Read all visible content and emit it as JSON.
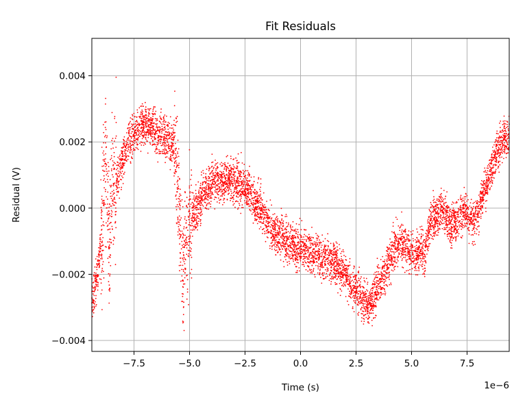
{
  "chart_data": {
    "type": "scatter",
    "title": "Fit Residuals",
    "xlabel": "Time (s)",
    "ylabel": "Residual (V)",
    "x_offset_label": "1e−6",
    "xlim": [
      -9.4,
      9.4
    ],
    "ylim": [
      -0.00433,
      0.00513
    ],
    "grid": true,
    "color": "#ff0000",
    "x_ticks": [
      -7.5,
      -5.0,
      -2.5,
      0.0,
      2.5,
      5.0,
      7.5
    ],
    "x_tick_labels": [
      "−7.5",
      "−5.0",
      "−2.5",
      "0.0",
      "2.5",
      "5.0",
      "7.5"
    ],
    "y_ticks": [
      -0.004,
      -0.002,
      0.0,
      0.002,
      0.004
    ],
    "y_tick_labels": [
      "−0.004",
      "−0.002",
      "0.000",
      "0.002",
      "0.004"
    ],
    "series": [
      {
        "x": [
          -9.4,
          -9.2,
          -9.0,
          -8.9,
          -8.8,
          -8.7,
          -8.6,
          -8.5,
          -8.3,
          -8.1,
          -7.9,
          -7.7,
          -7.5,
          -7.3,
          -7.1,
          -6.9,
          -6.7,
          -6.5,
          -6.3,
          -6.1,
          -5.9,
          -5.7,
          -5.5,
          -5.4,
          -5.3,
          -5.2,
          -5.1,
          -5.0,
          -4.8,
          -4.6,
          -4.4,
          -4.2,
          -4.0,
          -3.8,
          -3.6,
          -3.4,
          -3.2,
          -3.0,
          -2.8,
          -2.6,
          -2.4,
          -2.2,
          -2.0,
          -1.8,
          -1.6,
          -1.4,
          -1.2,
          -1.0,
          -0.8,
          -0.6,
          -0.4,
          -0.2,
          0.0,
          0.2,
          0.4,
          0.6,
          0.8,
          1.0,
          1.2,
          1.4,
          1.6,
          1.8,
          2.0,
          2.2,
          2.4,
          2.6,
          2.8,
          3.0,
          3.2,
          3.4,
          3.6,
          3.8,
          4.0,
          4.2,
          4.4,
          4.6,
          4.8,
          5.0,
          5.2,
          5.4,
          5.6,
          5.8,
          6.0,
          6.2,
          6.4,
          6.6,
          6.8,
          7.0,
          7.2,
          7.4,
          7.6,
          7.8,
          8.0,
          8.2,
          8.4,
          8.6,
          8.8,
          9.0,
          9.2,
          9.4
        ],
        "y": [
          -0.0027,
          -0.0022,
          -0.0012,
          -0.0005,
          0.0012,
          0.0003,
          -0.0012,
          0.0005,
          0.0008,
          0.0012,
          0.0017,
          0.0021,
          0.0022,
          0.0024,
          0.0025,
          0.0025,
          0.0024,
          0.0023,
          0.0022,
          0.0021,
          0.002,
          0.0019,
          0.0005,
          -0.001,
          -0.0018,
          -0.0012,
          -0.0008,
          -0.0004,
          -0.0002,
          0.0001,
          0.0004,
          0.0006,
          0.0007,
          0.0008,
          0.0008,
          0.0008,
          0.0009,
          0.0008,
          0.0008,
          0.0007,
          0.0006,
          0.0004,
          0.0002,
          0.0,
          -0.0003,
          -0.0005,
          -0.0007,
          -0.0008,
          -0.0009,
          -0.001,
          -0.0011,
          -0.0012,
          -0.0012,
          -0.0013,
          -0.0013,
          -0.0014,
          -0.0014,
          -0.0015,
          -0.0015,
          -0.0016,
          -0.0017,
          -0.0018,
          -0.002,
          -0.0022,
          -0.0024,
          -0.0026,
          -0.0028,
          -0.0029,
          -0.0028,
          -0.0025,
          -0.0022,
          -0.002,
          -0.0016,
          -0.0013,
          -0.001,
          -0.0011,
          -0.0012,
          -0.0013,
          -0.0014,
          -0.0012,
          -0.0015,
          -0.0005,
          -0.0003,
          -0.0002,
          0.0001,
          -0.0003,
          -0.0006,
          -0.0004,
          -0.0002,
          0.0,
          -0.0003,
          -0.0004,
          -0.0002,
          0.0004,
          0.0008,
          0.0012,
          0.0016,
          0.0019,
          0.0021,
          0.0021
        ]
      }
    ]
  }
}
